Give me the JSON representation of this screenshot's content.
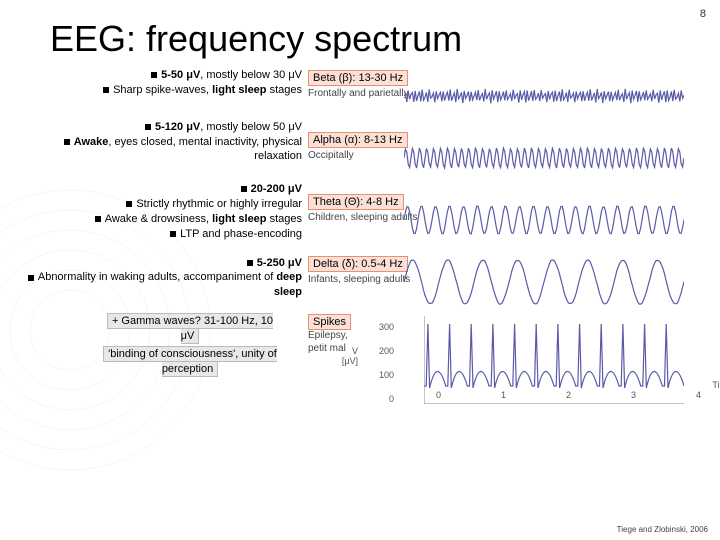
{
  "page_number": "8",
  "title": "EEG: frequency spectrum",
  "citation": "Tiege and Zlobinski, 2006",
  "colors": {
    "wave_stroke": "#5a5aa8",
    "highlight_bg": "#fce0d6",
    "highlight_border": "#e89070",
    "text": "#000000",
    "subtext": "#444444",
    "background": "#ffffff"
  },
  "bands": [
    {
      "name": "Beta (β): 13-30 Hz",
      "region": "Frontally and parietally",
      "desc1_pre": "5-50 μV",
      "desc1_post": ", mostly below 30 μV",
      "desc2_pre": "Sharp spike-waves, ",
      "desc2_bold": "light sleep",
      "desc2_post": " stages",
      "freq_hz": 20,
      "amplitude": 6
    },
    {
      "name": "Alpha (α): 8-13 Hz",
      "region": "Occipitally",
      "desc1_pre": "5-120 μV",
      "desc1_post": ", mostly below 50 μV",
      "desc2_bold": "Awake",
      "desc2_post": ", eyes closed, mental inactivity, physical relaxation",
      "freq_hz": 10,
      "amplitude": 10
    },
    {
      "name": "Theta (Θ): 4-8 Hz",
      "region": "Children, sleeping adults",
      "desc1_pre": "20-200 μV",
      "desc2": "Strictly rhythmic or highly irregular",
      "desc3_pre": "Awake & drowsiness, ",
      "desc3_bold": "light sleep",
      "desc3_post": " stages",
      "desc4": "LTP and phase-encoding",
      "freq_hz": 5,
      "amplitude": 14
    },
    {
      "name": "Delta (δ): 0.5-4 Hz",
      "region": "Infants, sleeping adults",
      "desc1_pre": "5-250 μV",
      "desc2_pre": "Abnormality in waking adults, accompaniment of ",
      "desc2_bold": "deep sleep",
      "freq_hz": 2,
      "amplitude": 22
    }
  ],
  "gamma": {
    "title": "+ Gamma waves? 31-100 Hz, 10 μV",
    "sub": "'binding of consciousness', unity of perception"
  },
  "spikes": {
    "name": "Spikes",
    "sub1": "Epilepsy,",
    "sub2": "petit mal",
    "ylabel": "V [μV]",
    "yticks": [
      0,
      100,
      200,
      300
    ],
    "wave_freq_hz": 3,
    "wave_amplitude": 28
  },
  "xaxis": {
    "ticks": [
      0,
      1,
      2,
      3,
      4
    ],
    "label": "Time [s]"
  }
}
